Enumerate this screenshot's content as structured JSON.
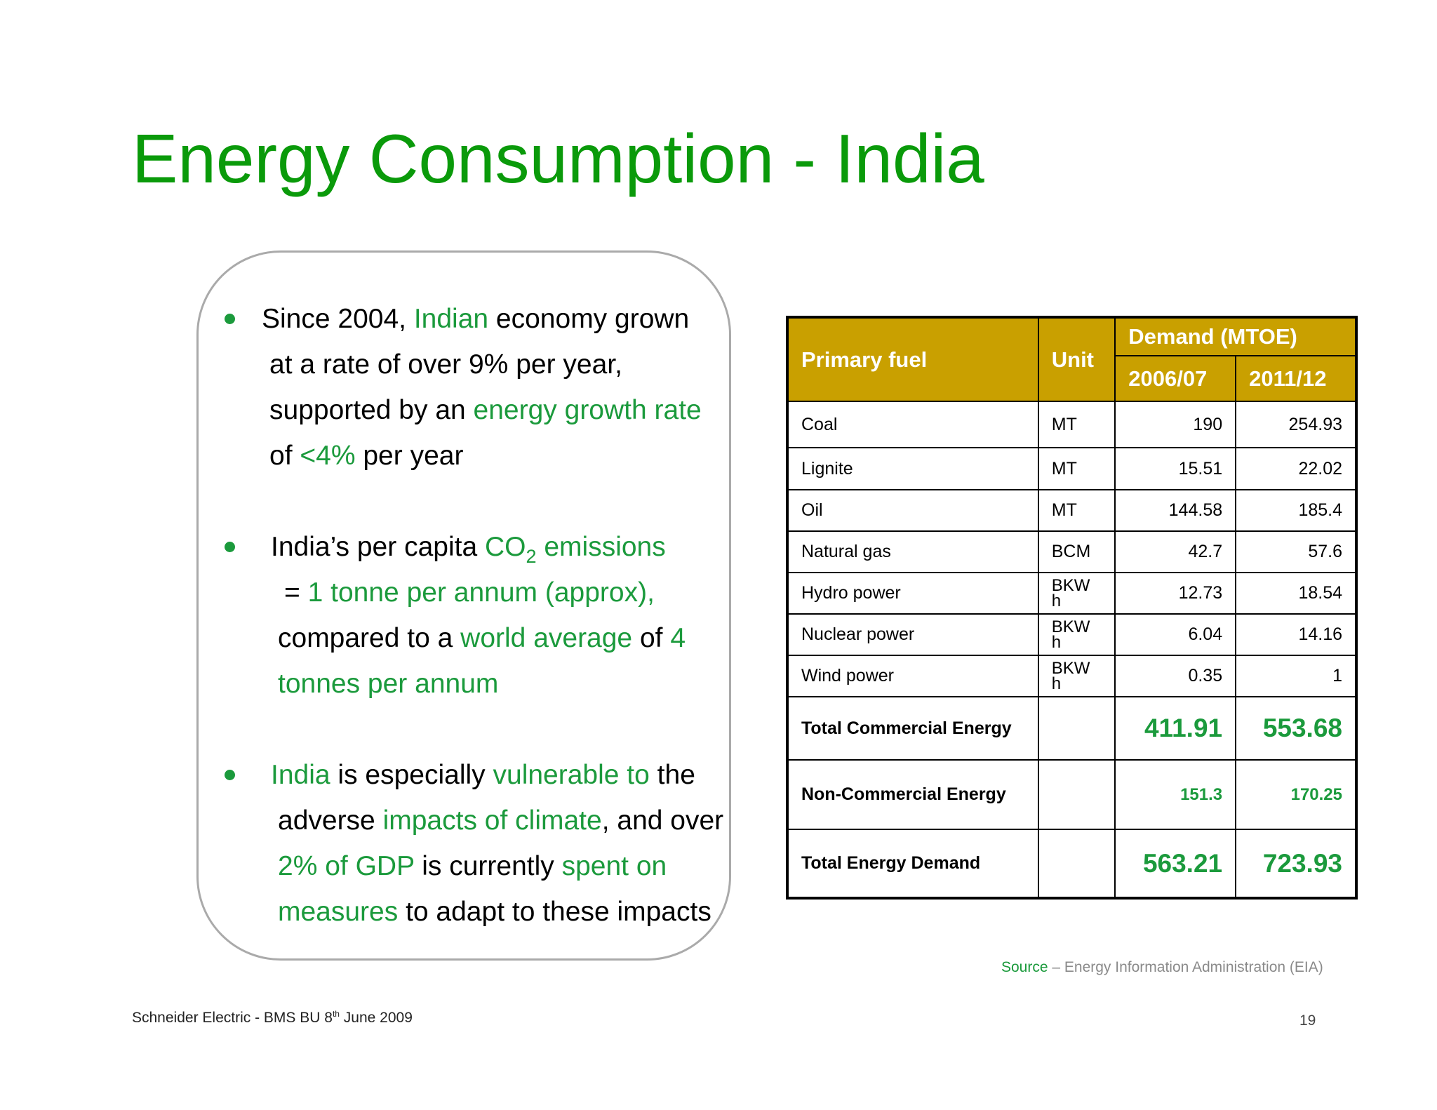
{
  "title": "Energy Consumption - India",
  "bullets": {
    "b1": {
      "l1": [
        "Since 2004, ",
        "Indian",
        " economy grown"
      ],
      "l2": "at a  rate of over 9% per year,",
      "l3": [
        "supported by an ",
        "energy growth rate"
      ],
      "l4": [
        "of ",
        "<4%",
        " per year"
      ]
    },
    "b2": {
      "l1": [
        "India’s per capita ",
        "CO",
        "2",
        " emissions"
      ],
      "l2": [
        "=  ",
        "1 tonne per annum (approx),"
      ],
      "l3": [
        "compared to a ",
        "world average",
        " of ",
        "4"
      ],
      "l4": "tonnes per annum"
    },
    "b3": {
      "l1": [
        "India",
        " is especially ",
        "vulnerable to",
        " the"
      ],
      "l2": [
        "adverse ",
        "impacts of climate",
        ", and over"
      ],
      "l3": [
        "2%  of GDP",
        " is currently ",
        "spent on"
      ],
      "l4": [
        "measures",
        " to adapt to these impacts"
      ]
    }
  },
  "table": {
    "headers": {
      "fuel": "Primary fuel",
      "unit": "Unit",
      "demand": "Demand (MTOE)",
      "y1": "2006/07",
      "y2": "2011/12"
    },
    "rows": [
      {
        "fuel": "Coal",
        "unit": "MT",
        "y1": "190",
        "y2": "254.93"
      },
      {
        "fuel": "Lignite",
        "unit": "MT",
        "y1": "15.51",
        "y2": "22.02"
      },
      {
        "fuel": "Oil",
        "unit": "MT",
        "y1": "144.58",
        "y2": "185.4"
      },
      {
        "fuel": "Natural gas",
        "unit": "BCM",
        "y1": "42.7",
        "y2": "57.6"
      },
      {
        "fuel": "Hydro power",
        "unit_a": "BKW",
        "unit_b": "h",
        "y1": "12.73",
        "y2": "18.54"
      },
      {
        "fuel": "Nuclear power",
        "unit_a": "BKW",
        "unit_b": "h",
        "y1": "6.04",
        "y2": "14.16"
      },
      {
        "fuel": "Wind power",
        "unit_a": "BKW",
        "unit_b": "h",
        "y1": "0.35",
        "y2": "1"
      }
    ],
    "totals": [
      {
        "label": "Total Commercial Energy",
        "y1": "411.91",
        "y2": "553.68"
      },
      {
        "label": "Non-Commercial Energy",
        "y1": "151.3",
        "y2": "170.25"
      },
      {
        "label": "Total Energy Demand",
        "y1": "563.21",
        "y2": "723.93"
      }
    ]
  },
  "source": {
    "label": "Source",
    "text": " – Energy Information Administration (EIA)"
  },
  "footer": {
    "text": "Schneider Electric - BMS BU 8",
    "sup": "th",
    "text2": " June 2009"
  },
  "page_number": "19",
  "colors": {
    "title": "#0a9a0a",
    "highlight": "#1b9a3c",
    "table_header": "#c9a000"
  }
}
